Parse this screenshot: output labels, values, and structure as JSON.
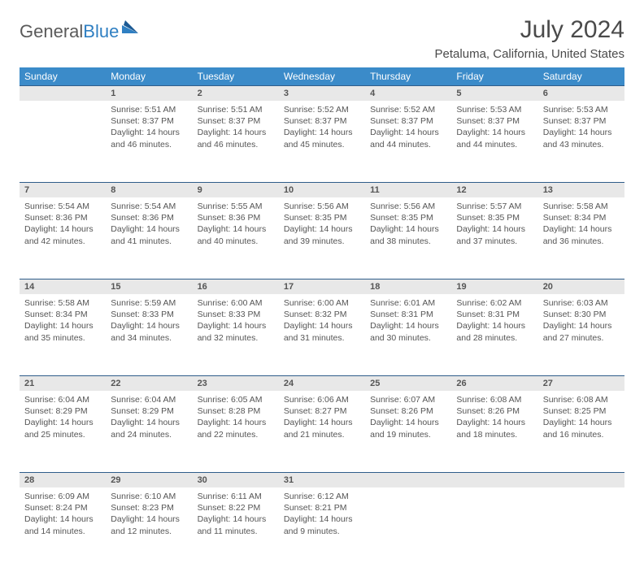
{
  "brand": {
    "part1": "General",
    "part2": "Blue"
  },
  "title": "July 2024",
  "location": "Petaluma, California, United States",
  "colors": {
    "header_bg": "#3b8bc9",
    "header_text": "#ffffff",
    "daynum_bg": "#e8e8e8",
    "row_divider": "#2f5d8a",
    "body_text": "#555555",
    "title_text": "#4a4a4a"
  },
  "weekdays": [
    "Sunday",
    "Monday",
    "Tuesday",
    "Wednesday",
    "Thursday",
    "Friday",
    "Saturday"
  ],
  "labels": {
    "sunrise": "Sunrise: ",
    "sunset": "Sunset: ",
    "daylight": "Daylight: "
  },
  "weeks": [
    [
      null,
      {
        "n": "1",
        "sr": "5:51 AM",
        "ss": "8:37 PM",
        "dl": "14 hours and 46 minutes."
      },
      {
        "n": "2",
        "sr": "5:51 AM",
        "ss": "8:37 PM",
        "dl": "14 hours and 46 minutes."
      },
      {
        "n": "3",
        "sr": "5:52 AM",
        "ss": "8:37 PM",
        "dl": "14 hours and 45 minutes."
      },
      {
        "n": "4",
        "sr": "5:52 AM",
        "ss": "8:37 PM",
        "dl": "14 hours and 44 minutes."
      },
      {
        "n": "5",
        "sr": "5:53 AM",
        "ss": "8:37 PM",
        "dl": "14 hours and 44 minutes."
      },
      {
        "n": "6",
        "sr": "5:53 AM",
        "ss": "8:37 PM",
        "dl": "14 hours and 43 minutes."
      }
    ],
    [
      {
        "n": "7",
        "sr": "5:54 AM",
        "ss": "8:36 PM",
        "dl": "14 hours and 42 minutes."
      },
      {
        "n": "8",
        "sr": "5:54 AM",
        "ss": "8:36 PM",
        "dl": "14 hours and 41 minutes."
      },
      {
        "n": "9",
        "sr": "5:55 AM",
        "ss": "8:36 PM",
        "dl": "14 hours and 40 minutes."
      },
      {
        "n": "10",
        "sr": "5:56 AM",
        "ss": "8:35 PM",
        "dl": "14 hours and 39 minutes."
      },
      {
        "n": "11",
        "sr": "5:56 AM",
        "ss": "8:35 PM",
        "dl": "14 hours and 38 minutes."
      },
      {
        "n": "12",
        "sr": "5:57 AM",
        "ss": "8:35 PM",
        "dl": "14 hours and 37 minutes."
      },
      {
        "n": "13",
        "sr": "5:58 AM",
        "ss": "8:34 PM",
        "dl": "14 hours and 36 minutes."
      }
    ],
    [
      {
        "n": "14",
        "sr": "5:58 AM",
        "ss": "8:34 PM",
        "dl": "14 hours and 35 minutes."
      },
      {
        "n": "15",
        "sr": "5:59 AM",
        "ss": "8:33 PM",
        "dl": "14 hours and 34 minutes."
      },
      {
        "n": "16",
        "sr": "6:00 AM",
        "ss": "8:33 PM",
        "dl": "14 hours and 32 minutes."
      },
      {
        "n": "17",
        "sr": "6:00 AM",
        "ss": "8:32 PM",
        "dl": "14 hours and 31 minutes."
      },
      {
        "n": "18",
        "sr": "6:01 AM",
        "ss": "8:31 PM",
        "dl": "14 hours and 30 minutes."
      },
      {
        "n": "19",
        "sr": "6:02 AM",
        "ss": "8:31 PM",
        "dl": "14 hours and 28 minutes."
      },
      {
        "n": "20",
        "sr": "6:03 AM",
        "ss": "8:30 PM",
        "dl": "14 hours and 27 minutes."
      }
    ],
    [
      {
        "n": "21",
        "sr": "6:04 AM",
        "ss": "8:29 PM",
        "dl": "14 hours and 25 minutes."
      },
      {
        "n": "22",
        "sr": "6:04 AM",
        "ss": "8:29 PM",
        "dl": "14 hours and 24 minutes."
      },
      {
        "n": "23",
        "sr": "6:05 AM",
        "ss": "8:28 PM",
        "dl": "14 hours and 22 minutes."
      },
      {
        "n": "24",
        "sr": "6:06 AM",
        "ss": "8:27 PM",
        "dl": "14 hours and 21 minutes."
      },
      {
        "n": "25",
        "sr": "6:07 AM",
        "ss": "8:26 PM",
        "dl": "14 hours and 19 minutes."
      },
      {
        "n": "26",
        "sr": "6:08 AM",
        "ss": "8:26 PM",
        "dl": "14 hours and 18 minutes."
      },
      {
        "n": "27",
        "sr": "6:08 AM",
        "ss": "8:25 PM",
        "dl": "14 hours and 16 minutes."
      }
    ],
    [
      {
        "n": "28",
        "sr": "6:09 AM",
        "ss": "8:24 PM",
        "dl": "14 hours and 14 minutes."
      },
      {
        "n": "29",
        "sr": "6:10 AM",
        "ss": "8:23 PM",
        "dl": "14 hours and 12 minutes."
      },
      {
        "n": "30",
        "sr": "6:11 AM",
        "ss": "8:22 PM",
        "dl": "14 hours and 11 minutes."
      },
      {
        "n": "31",
        "sr": "6:12 AM",
        "ss": "8:21 PM",
        "dl": "14 hours and 9 minutes."
      },
      null,
      null,
      null
    ]
  ]
}
